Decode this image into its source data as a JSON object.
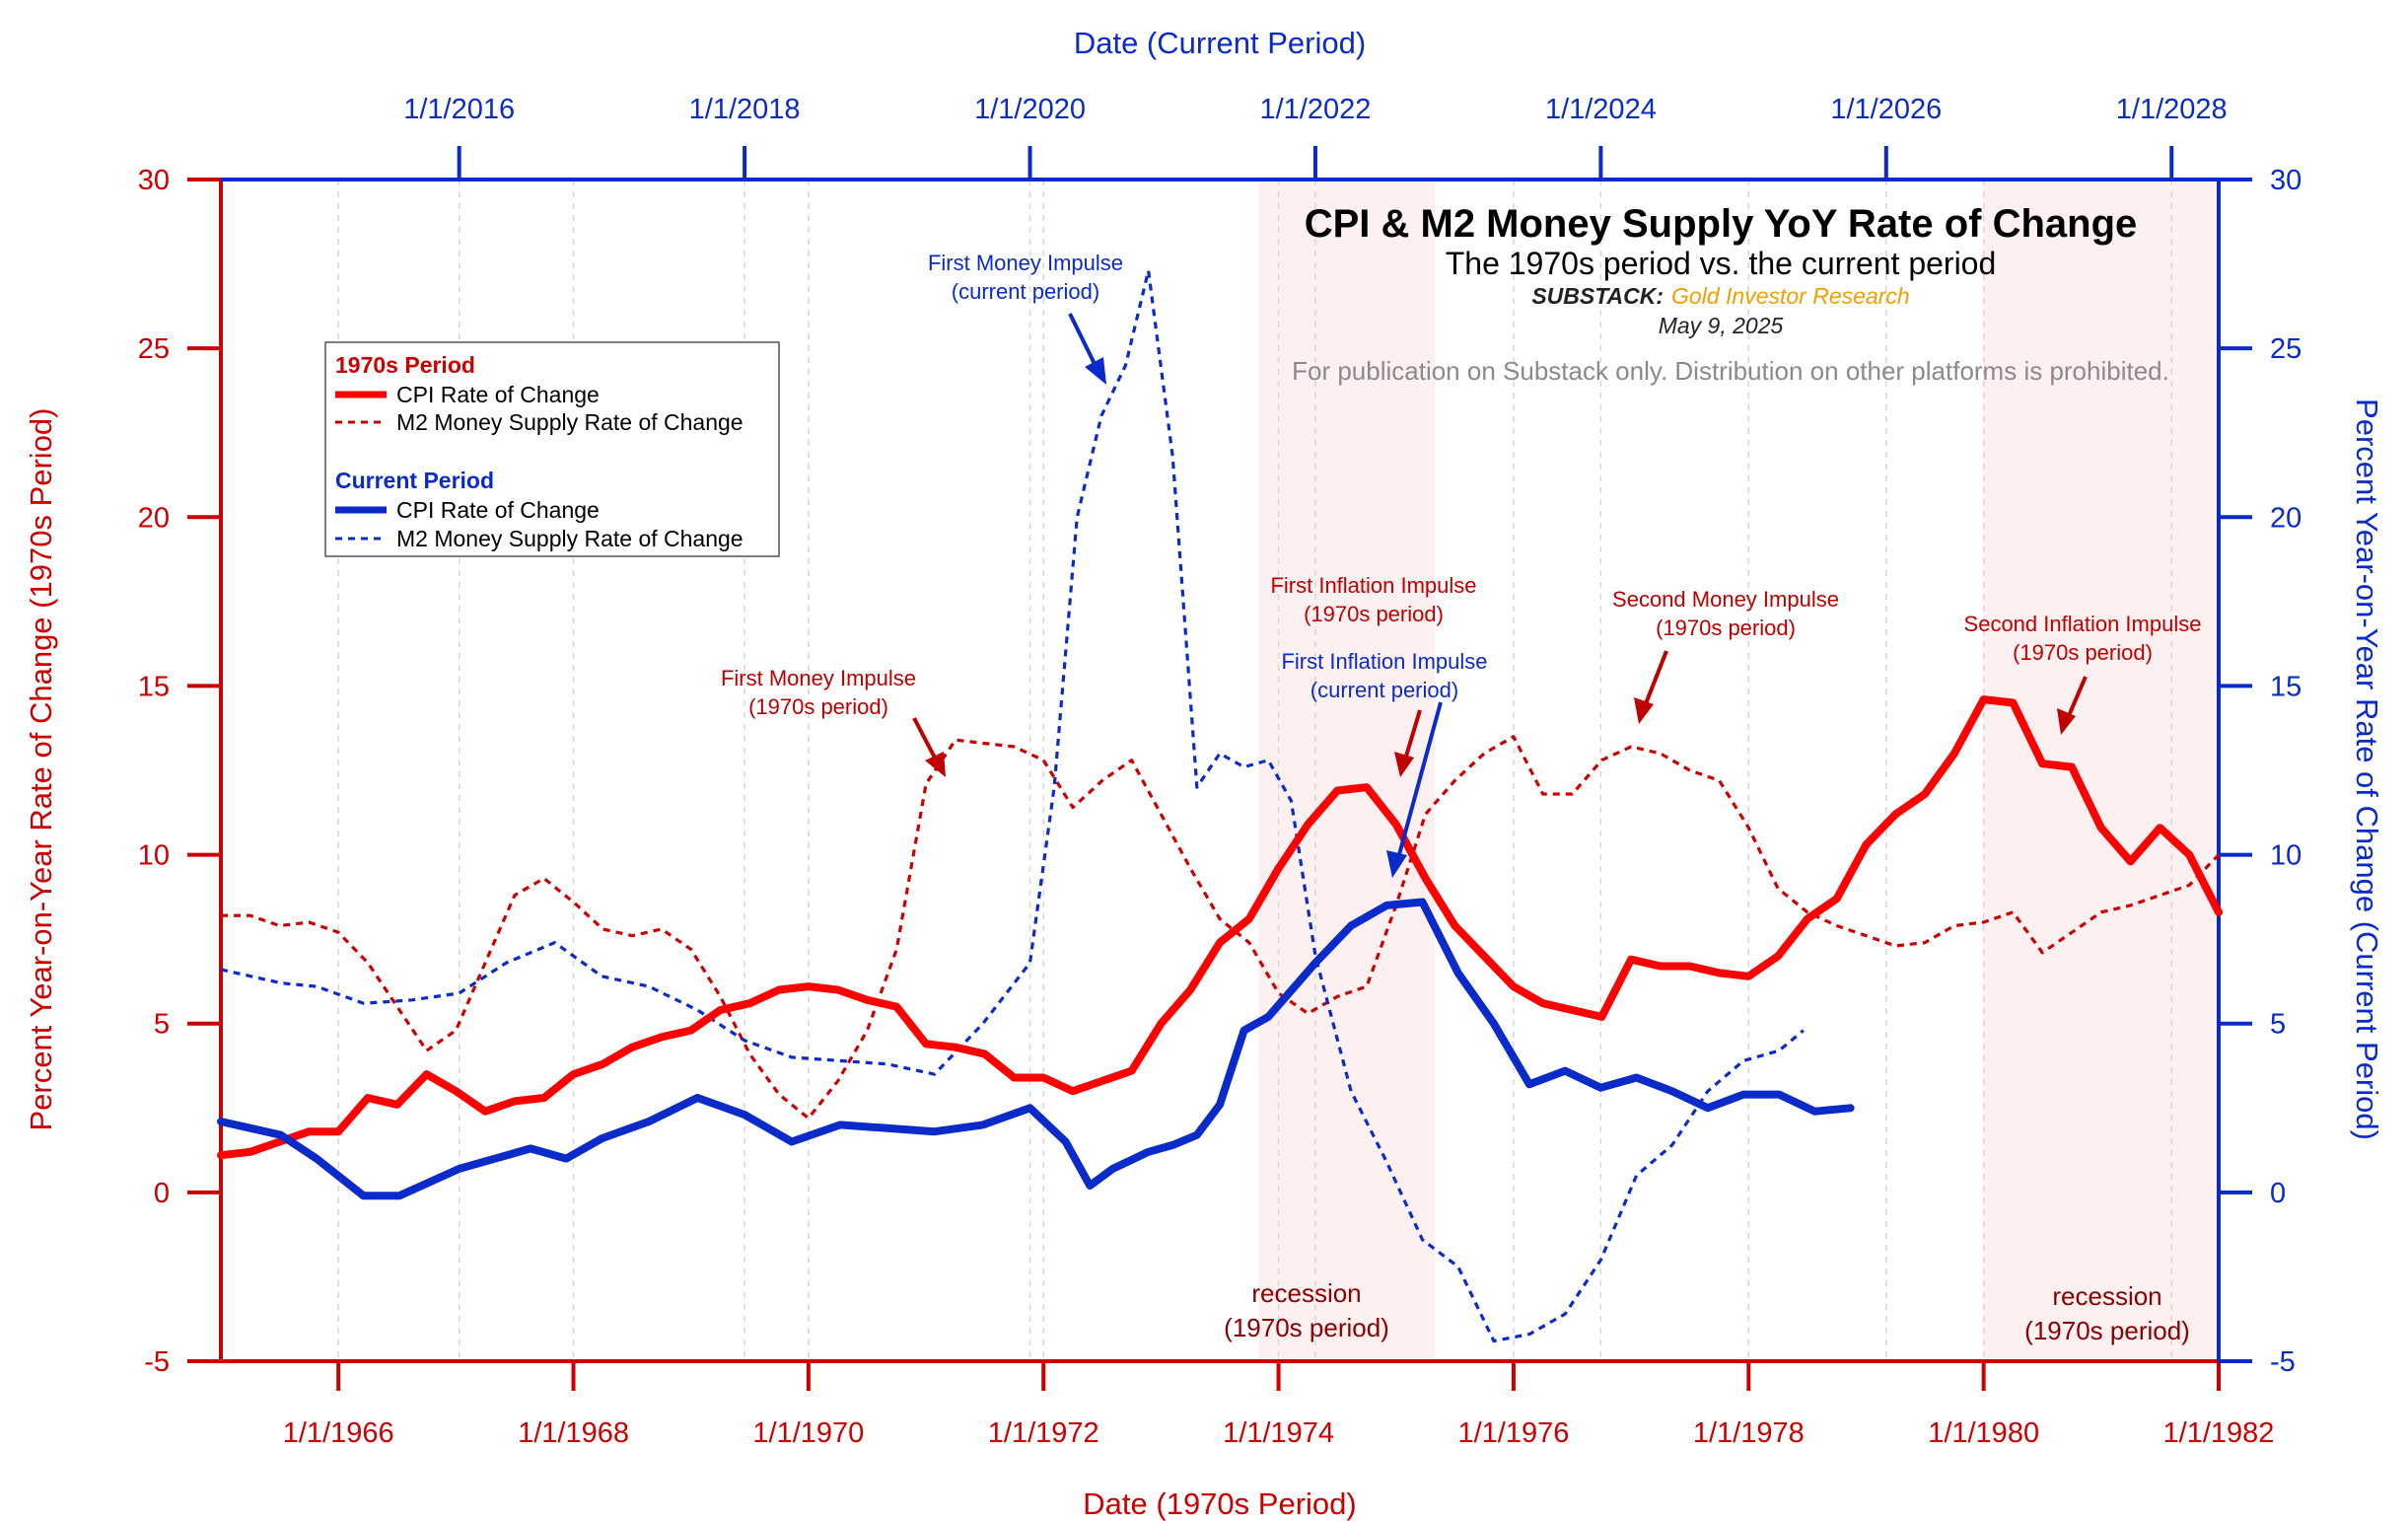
{
  "chart_data": {
    "type": "line",
    "title": "CPI & M2 Money Supply YoY Rate of Change",
    "subtitle": "The 1970s period vs. the current period",
    "substack_label": "SUBSTACK:",
    "substack_name": "Gold Investor Research",
    "date": "May 9, 2025",
    "disclaimer": "For publication on Substack only. Distribution on other platforms is prohibited.",
    "bottom_axis": {
      "title": "Date (1970s Period)",
      "range": [
        1965.0,
        1982.0
      ],
      "ticks": [
        1966,
        1968,
        1970,
        1972,
        1974,
        1976,
        1978,
        1980,
        1982
      ],
      "tick_labels": [
        "1/1/1966",
        "1/1/1968",
        "1/1/1970",
        "1/1/1972",
        "1/1/1974",
        "1/1/1976",
        "1/1/1978",
        "1/1/1980",
        "1/1/1982"
      ]
    },
    "top_axis": {
      "title": "Date (Current Period)",
      "range": [
        2014.33,
        2028.33
      ],
      "ticks": [
        2016,
        2018,
        2020,
        2022,
        2024,
        2026,
        2028
      ],
      "tick_labels": [
        "1/1/2016",
        "1/1/2018",
        "1/1/2020",
        "1/1/2022",
        "1/1/2024",
        "1/1/2026",
        "1/1/2028"
      ]
    },
    "left_axis": {
      "title": "Percent Year-on-Year Rate of Change (1970s Period)",
      "ylim": [
        -5,
        30
      ],
      "ticks": [
        -5,
        0,
        5,
        10,
        15,
        20,
        25,
        30
      ]
    },
    "right_axis": {
      "title": "Percent Year-on-Year Rate of Change (Current Period)",
      "ylim": [
        -5,
        30
      ],
      "ticks": [
        -5,
        0,
        5,
        10,
        15,
        20,
        25,
        30
      ]
    },
    "grid": "vertical dashed",
    "legend": {
      "placement": "upper-left",
      "group1_title": "1970s Period",
      "group2_title": "Current Period",
      "items": [
        {
          "label": "CPI Rate of Change",
          "color": "#ff0000",
          "style": "solid"
        },
        {
          "label": "M2 Money Supply Rate of Change",
          "color": "#cc0000",
          "style": "dashed"
        },
        {
          "label": "CPI Rate of Change",
          "color": "#0a2bc9",
          "style": "solid"
        },
        {
          "label": "M2 Money Supply Rate of Change",
          "color": "#0a2bc9",
          "style": "dashed"
        }
      ]
    },
    "recessions": [
      {
        "start": 1973.83,
        "end": 1975.33,
        "label_line1": "recession",
        "label_line2": "(1970s period)"
      },
      {
        "start": 1980.0,
        "end": 1982.0,
        "label_line1": "recession",
        "label_line2": "(1970s period)"
      }
    ],
    "series": [
      {
        "name": "CPI Rate of Change",
        "group": "1970s Period",
        "axis": "bottom-left",
        "color": "#ff0000",
        "style": "solid",
        "x": [
          1965.0,
          1965.25,
          1965.5,
          1965.75,
          1966.0,
          1966.25,
          1966.5,
          1966.75,
          1967.0,
          1967.25,
          1967.5,
          1967.75,
          1968.0,
          1968.25,
          1968.5,
          1968.75,
          1969.0,
          1969.25,
          1969.5,
          1969.75,
          1970.0,
          1970.25,
          1970.5,
          1970.75,
          1971.0,
          1971.25,
          1971.5,
          1971.75,
          1972.0,
          1972.25,
          1972.5,
          1972.75,
          1973.0,
          1973.25,
          1973.5,
          1973.75,
          1974.0,
          1974.25,
          1974.5,
          1974.75,
          1975.0,
          1975.25,
          1975.5,
          1975.75,
          1976.0,
          1976.25,
          1976.5,
          1976.75,
          1977.0,
          1977.25,
          1977.5,
          1977.75,
          1978.0,
          1978.25,
          1978.5,
          1978.75,
          1979.0,
          1979.25,
          1979.5,
          1979.75,
          1980.0,
          1980.25,
          1980.5,
          1980.75,
          1981.0,
          1981.25,
          1981.5,
          1981.75,
          1982.0
        ],
        "values": [
          1.1,
          1.2,
          1.5,
          1.8,
          1.8,
          2.8,
          2.6,
          3.5,
          3.0,
          2.4,
          2.7,
          2.8,
          3.5,
          3.8,
          4.3,
          4.6,
          4.8,
          5.4,
          5.6,
          6.0,
          6.1,
          6.0,
          5.7,
          5.5,
          4.4,
          4.3,
          4.1,
          3.4,
          3.4,
          3.0,
          3.3,
          3.6,
          5.0,
          6.0,
          7.4,
          8.1,
          9.6,
          10.9,
          11.9,
          12.0,
          10.9,
          9.3,
          7.9,
          7.0,
          6.1,
          5.6,
          5.4,
          5.2,
          6.9,
          6.7,
          6.7,
          6.5,
          6.4,
          7.0,
          8.1,
          8.7,
          10.3,
          11.2,
          11.8,
          13.0,
          14.6,
          14.5,
          12.7,
          12.6,
          10.8,
          9.8,
          10.8,
          10.0,
          8.3
        ]
      },
      {
        "name": "M2 Money Supply Rate of Change",
        "group": "1970s Period",
        "axis": "bottom-left",
        "color": "#cc0000",
        "style": "dashed",
        "x": [
          1965.0,
          1965.25,
          1965.5,
          1965.75,
          1966.0,
          1966.25,
          1966.5,
          1966.75,
          1967.0,
          1967.25,
          1967.5,
          1967.75,
          1968.0,
          1968.25,
          1968.5,
          1968.75,
          1969.0,
          1969.25,
          1969.5,
          1969.75,
          1970.0,
          1970.25,
          1970.5,
          1970.75,
          1971.0,
          1971.25,
          1971.5,
          1971.75,
          1972.0,
          1972.25,
          1972.5,
          1972.75,
          1973.0,
          1973.25,
          1973.5,
          1973.75,
          1974.0,
          1974.25,
          1974.5,
          1974.75,
          1975.0,
          1975.25,
          1975.5,
          1975.75,
          1976.0,
          1976.25,
          1976.5,
          1976.75,
          1977.0,
          1977.25,
          1977.5,
          1977.75,
          1978.0,
          1978.25,
          1978.5,
          1978.75,
          1979.0,
          1979.25,
          1979.5,
          1979.75,
          1980.0,
          1980.25,
          1980.5,
          1980.75,
          1981.0,
          1981.25,
          1981.5,
          1981.75,
          1982.0
        ],
        "values": [
          8.2,
          8.2,
          7.9,
          8.0,
          7.7,
          6.8,
          5.5,
          4.2,
          4.8,
          6.8,
          8.8,
          9.3,
          8.6,
          7.8,
          7.6,
          7.8,
          7.2,
          5.8,
          4.1,
          2.9,
          2.2,
          3.3,
          4.8,
          7.2,
          12.1,
          13.4,
          13.3,
          13.2,
          12.8,
          11.4,
          12.2,
          12.8,
          11.2,
          9.6,
          8.1,
          7.4,
          5.9,
          5.3,
          5.8,
          6.1,
          8.5,
          11.2,
          12.2,
          13.0,
          13.5,
          11.8,
          11.8,
          12.8,
          13.2,
          13.0,
          12.5,
          12.2,
          10.8,
          9.0,
          8.3,
          7.9,
          7.6,
          7.3,
          7.4,
          7.9,
          8.0,
          8.3,
          7.1,
          7.7,
          8.3,
          8.5,
          8.8,
          9.1,
          10.0
        ]
      },
      {
        "name": "CPI Rate of Change",
        "group": "Current Period",
        "axis": "top-right",
        "color": "#0a2bc9",
        "style": "solid",
        "x": [
          2014.33,
          2014.75,
          2015.0,
          2015.33,
          2015.58,
          2016.0,
          2016.5,
          2016.75,
          2017.0,
          2017.33,
          2017.67,
          2018.0,
          2018.33,
          2018.67,
          2019.0,
          2019.33,
          2019.67,
          2020.0,
          2020.25,
          2020.42,
          2020.58,
          2020.83,
          2021.0,
          2021.17,
          2021.33,
          2021.5,
          2021.67,
          2022.0,
          2022.25,
          2022.5,
          2022.75,
          2023.0,
          2023.25,
          2023.5,
          2023.75,
          2024.0,
          2024.25,
          2024.5,
          2024.75,
          2025.0,
          2025.25,
          2025.5,
          2025.75
        ],
        "values": [
          2.1,
          1.7,
          1.0,
          -0.1,
          -0.1,
          0.7,
          1.3,
          1.0,
          1.6,
          2.1,
          2.8,
          2.3,
          1.5,
          2.0,
          1.9,
          1.8,
          2.0,
          2.5,
          1.5,
          0.2,
          0.7,
          1.2,
          1.4,
          1.7,
          2.6,
          4.8,
          5.2,
          6.8,
          7.9,
          8.5,
          8.6,
          6.5,
          5.0,
          3.2,
          3.6,
          3.1,
          3.4,
          3.0,
          2.5,
          2.9,
          2.9,
          2.4,
          2.5
        ]
      },
      {
        "name": "M2 Money Supply Rate of Change",
        "group": "Current Period",
        "axis": "top-right",
        "color": "#0a2bc9",
        "style": "dashed",
        "x": [
          2014.33,
          2014.75,
          2015.0,
          2015.33,
          2015.67,
          2016.0,
          2016.33,
          2016.67,
          2017.0,
          2017.33,
          2017.67,
          2018.0,
          2018.33,
          2018.67,
          2019.0,
          2019.33,
          2019.67,
          2020.0,
          2020.17,
          2020.33,
          2020.5,
          2020.67,
          2020.83,
          2021.0,
          2021.17,
          2021.33,
          2021.5,
          2021.67,
          2021.83,
          2022.0,
          2022.25,
          2022.5,
          2022.75,
          2023.0,
          2023.25,
          2023.5,
          2023.75,
          2024.0,
          2024.25,
          2024.5,
          2024.75,
          2025.0,
          2025.25,
          2025.42
        ],
        "values": [
          6.6,
          6.2,
          6.1,
          5.6,
          5.7,
          5.9,
          6.8,
          7.4,
          6.4,
          6.1,
          5.4,
          4.5,
          4.0,
          3.9,
          3.8,
          3.5,
          5.0,
          6.8,
          12.0,
          20.0,
          23.0,
          24.5,
          27.3,
          21.8,
          12.0,
          13.0,
          12.6,
          12.8,
          11.6,
          7.0,
          3.0,
          0.9,
          -1.4,
          -2.2,
          -4.4,
          -4.2,
          -3.6,
          -2.0,
          0.5,
          1.4,
          3.0,
          3.9,
          4.2,
          4.8
        ]
      }
    ],
    "annotations": [
      {
        "line1": "First Money Impulse",
        "line2": "(current period)",
        "color": "blue"
      },
      {
        "line1": "First Money Impulse",
        "line2": "(1970s period)",
        "color": "red"
      },
      {
        "line1": "First Inflation Impulse",
        "line2": "(1970s period)",
        "color": "red"
      },
      {
        "line1": "First Inflation Impulse",
        "line2": "(current period)",
        "color": "blue"
      },
      {
        "line1": "Second Money Impulse",
        "line2": "(1970s period)",
        "color": "red"
      },
      {
        "line1": "Second Inflation Impulse",
        "line2": "(1970s period)",
        "color": "red"
      }
    ]
  }
}
